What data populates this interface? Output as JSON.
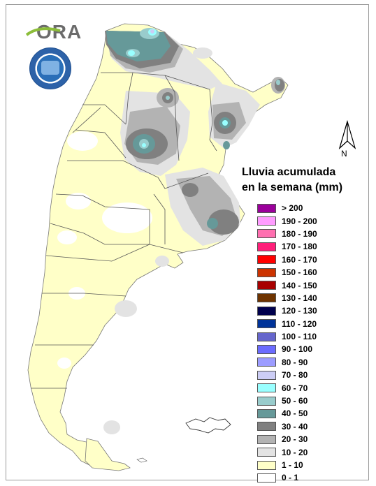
{
  "logo": {
    "text": "ORA",
    "icon": "ora-logo-icon"
  },
  "seal": {
    "icon": "smn-seal-icon"
  },
  "north_arrow": {
    "icon": "north-arrow-icon",
    "label": "N"
  },
  "legend": {
    "title_line1": "Lluvia acumulada",
    "title_line2": "en la semana (mm)",
    "items": [
      {
        "label": "> 200",
        "color": "#9b009b"
      },
      {
        "label": "190 - 200",
        "color": "#ff9cff"
      },
      {
        "label": "180 - 190",
        "color": "#ff6fb0"
      },
      {
        "label": "170 - 180",
        "color": "#ff1f7a"
      },
      {
        "label": "160 - 170",
        "color": "#ff0000"
      },
      {
        "label": "150 - 160",
        "color": "#cc3300"
      },
      {
        "label": "140 - 150",
        "color": "#a80000"
      },
      {
        "label": "130 - 140",
        "color": "#6e3300"
      },
      {
        "label": "120 - 130",
        "color": "#00004d"
      },
      {
        "label": "110 - 120",
        "color": "#003399"
      },
      {
        "label": "100 - 110",
        "color": "#6666cc"
      },
      {
        "label": "90 - 100",
        "color": "#6b6bff"
      },
      {
        "label": "80 - 90",
        "color": "#9c9cff"
      },
      {
        "label": "70 - 80",
        "color": "#cccdf5"
      },
      {
        "label": "60 - 70",
        "color": "#99ffff"
      },
      {
        "label": "50 - 60",
        "color": "#99cccc"
      },
      {
        "label": "40 - 50",
        "color": "#669999"
      },
      {
        "label": "30 - 40",
        "color": "#808080"
      },
      {
        "label": "20 - 30",
        "color": "#b3b3b3"
      },
      {
        "label": "10 - 20",
        "color": "#e3e3e3"
      },
      {
        "label": "1 - 10",
        "color": "#ffffc8"
      },
      {
        "label": "0 - 1",
        "color": "#ffffff"
      }
    ]
  }
}
